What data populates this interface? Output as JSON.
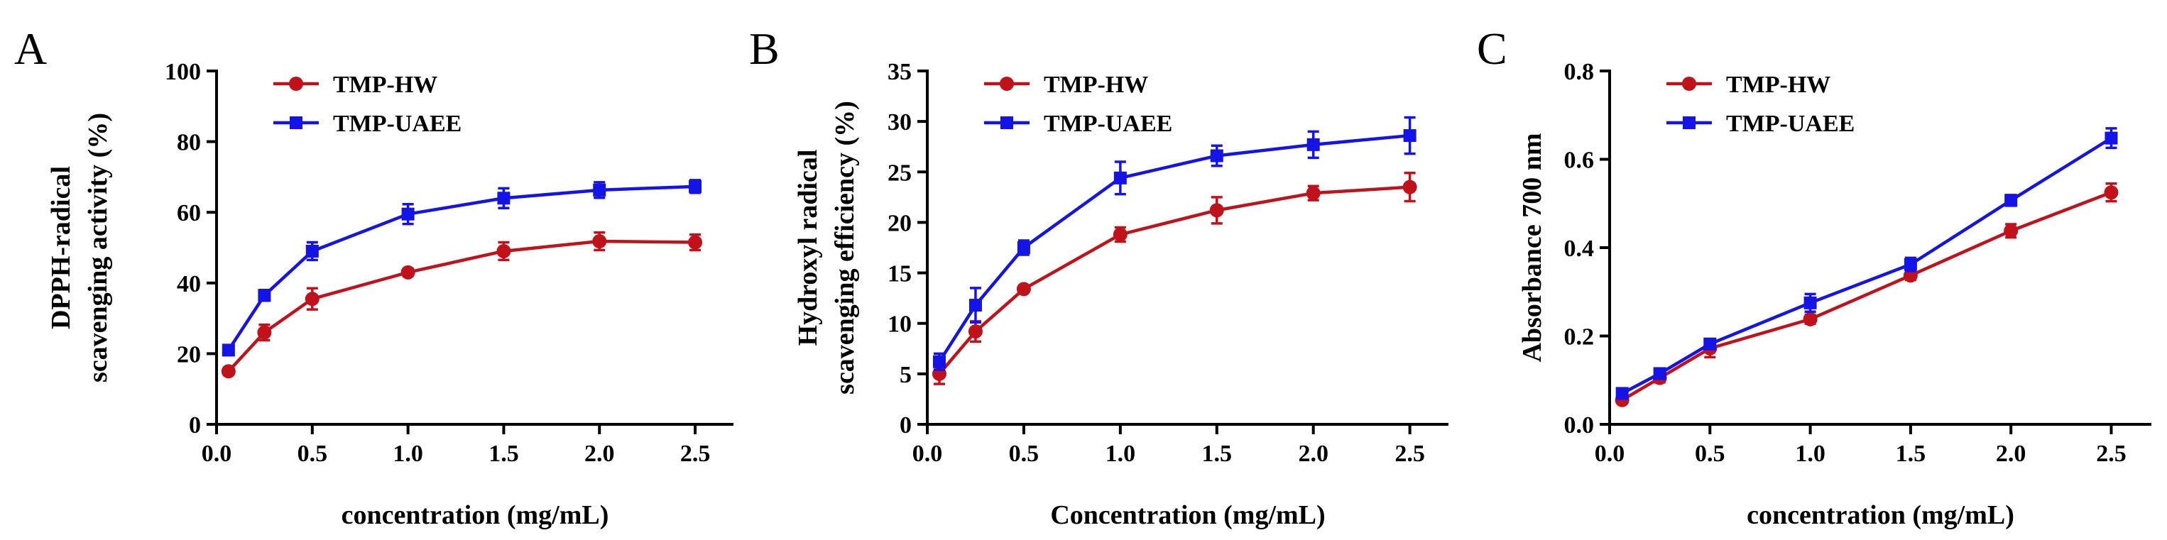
{
  "chart_data": [
    {
      "panel": "A",
      "type": "line",
      "title": "",
      "xlabel": "concentration (mg/mL)",
      "ylabel": [
        "DPPH-radical",
        "scavenging activity (%)"
      ],
      "xlim": [
        0,
        2.7
      ],
      "ylim": [
        0,
        100
      ],
      "xticks": [
        "0.0",
        "0.5",
        "1.0",
        "1.5",
        "2.0",
        "2.5"
      ],
      "yticks": [
        "0",
        "20",
        "40",
        "60",
        "80",
        "100"
      ],
      "x": [
        0.0625,
        0.25,
        0.5,
        1.0,
        1.5,
        2.0,
        2.5
      ],
      "legend_position": "top-left",
      "series": [
        {
          "name": "TMP-HW",
          "color": "#c0121b",
          "marker": "circle",
          "values": [
            15,
            26,
            35.5,
            43,
            49,
            51.8,
            51.5
          ],
          "errors": [
            1.0,
            2.2,
            3.0,
            1.0,
            2.5,
            2.5,
            2.2
          ]
        },
        {
          "name": "TMP-UAEE",
          "color": "#1414e6",
          "marker": "square",
          "values": [
            21,
            36.5,
            49,
            59.5,
            64,
            66.3,
            67.3
          ],
          "errors": [
            1.0,
            1.5,
            2.5,
            2.8,
            2.8,
            2.2,
            1.8
          ]
        }
      ]
    },
    {
      "panel": "B",
      "type": "line",
      "title": "",
      "xlabel": "Concentration (mg/mL)",
      "ylabel": [
        "Hydroxyl radical",
        "scavenging efficiency (%)"
      ],
      "xlim": [
        0,
        2.7
      ],
      "ylim": [
        0,
        35
      ],
      "xticks": [
        "0.0",
        "0.5",
        "1.0",
        "1.5",
        "2.0",
        "2.5"
      ],
      "yticks": [
        "0",
        "5",
        "10",
        "15",
        "20",
        "25",
        "30",
        "35"
      ],
      "x": [
        0.0625,
        0.25,
        0.5,
        1.0,
        1.5,
        2.0,
        2.5
      ],
      "legend_position": "top-left",
      "series": [
        {
          "name": "TMP-HW",
          "color": "#c0121b",
          "marker": "circle",
          "values": [
            5.0,
            9.2,
            13.4,
            18.8,
            21.2,
            22.9,
            23.5
          ],
          "errors": [
            1.0,
            1.0,
            0.3,
            0.7,
            1.3,
            0.7,
            1.4
          ]
        },
        {
          "name": "TMP-UAEE",
          "color": "#1414e6",
          "marker": "square",
          "values": [
            6.2,
            11.8,
            17.5,
            24.4,
            26.6,
            27.7,
            28.6
          ],
          "errors": [
            0.8,
            1.7,
            0.7,
            1.6,
            1.0,
            1.3,
            1.8
          ]
        }
      ]
    },
    {
      "panel": "C",
      "type": "line",
      "title": "",
      "xlabel": "concentration (mg/mL)",
      "ylabel": [
        "Absorbance 700 nm"
      ],
      "xlim": [
        0,
        2.7
      ],
      "ylim": [
        0,
        0.8
      ],
      "xticks": [
        "0.0",
        "0.5",
        "1.0",
        "1.5",
        "2.0",
        "2.5"
      ],
      "yticks": [
        "0.0",
        "0.2",
        "0.4",
        "0.6",
        "0.8"
      ],
      "x": [
        0.0625,
        0.25,
        0.5,
        1.0,
        1.5,
        2.0,
        2.5
      ],
      "legend_position": "top-left",
      "series": [
        {
          "name": "TMP-HW",
          "color": "#c0121b",
          "marker": "circle",
          "values": [
            0.055,
            0.105,
            0.172,
            0.238,
            0.337,
            0.438,
            0.525
          ],
          "errors": [
            0.007,
            0.01,
            0.02,
            0.01,
            0.01,
            0.015,
            0.02
          ]
        },
        {
          "name": "TMP-UAEE",
          "color": "#1414e6",
          "marker": "square",
          "values": [
            0.07,
            0.115,
            0.182,
            0.275,
            0.362,
            0.507,
            0.648
          ],
          "errors": [
            0.005,
            0.01,
            0.01,
            0.02,
            0.015,
            0.012,
            0.022
          ]
        }
      ]
    }
  ]
}
